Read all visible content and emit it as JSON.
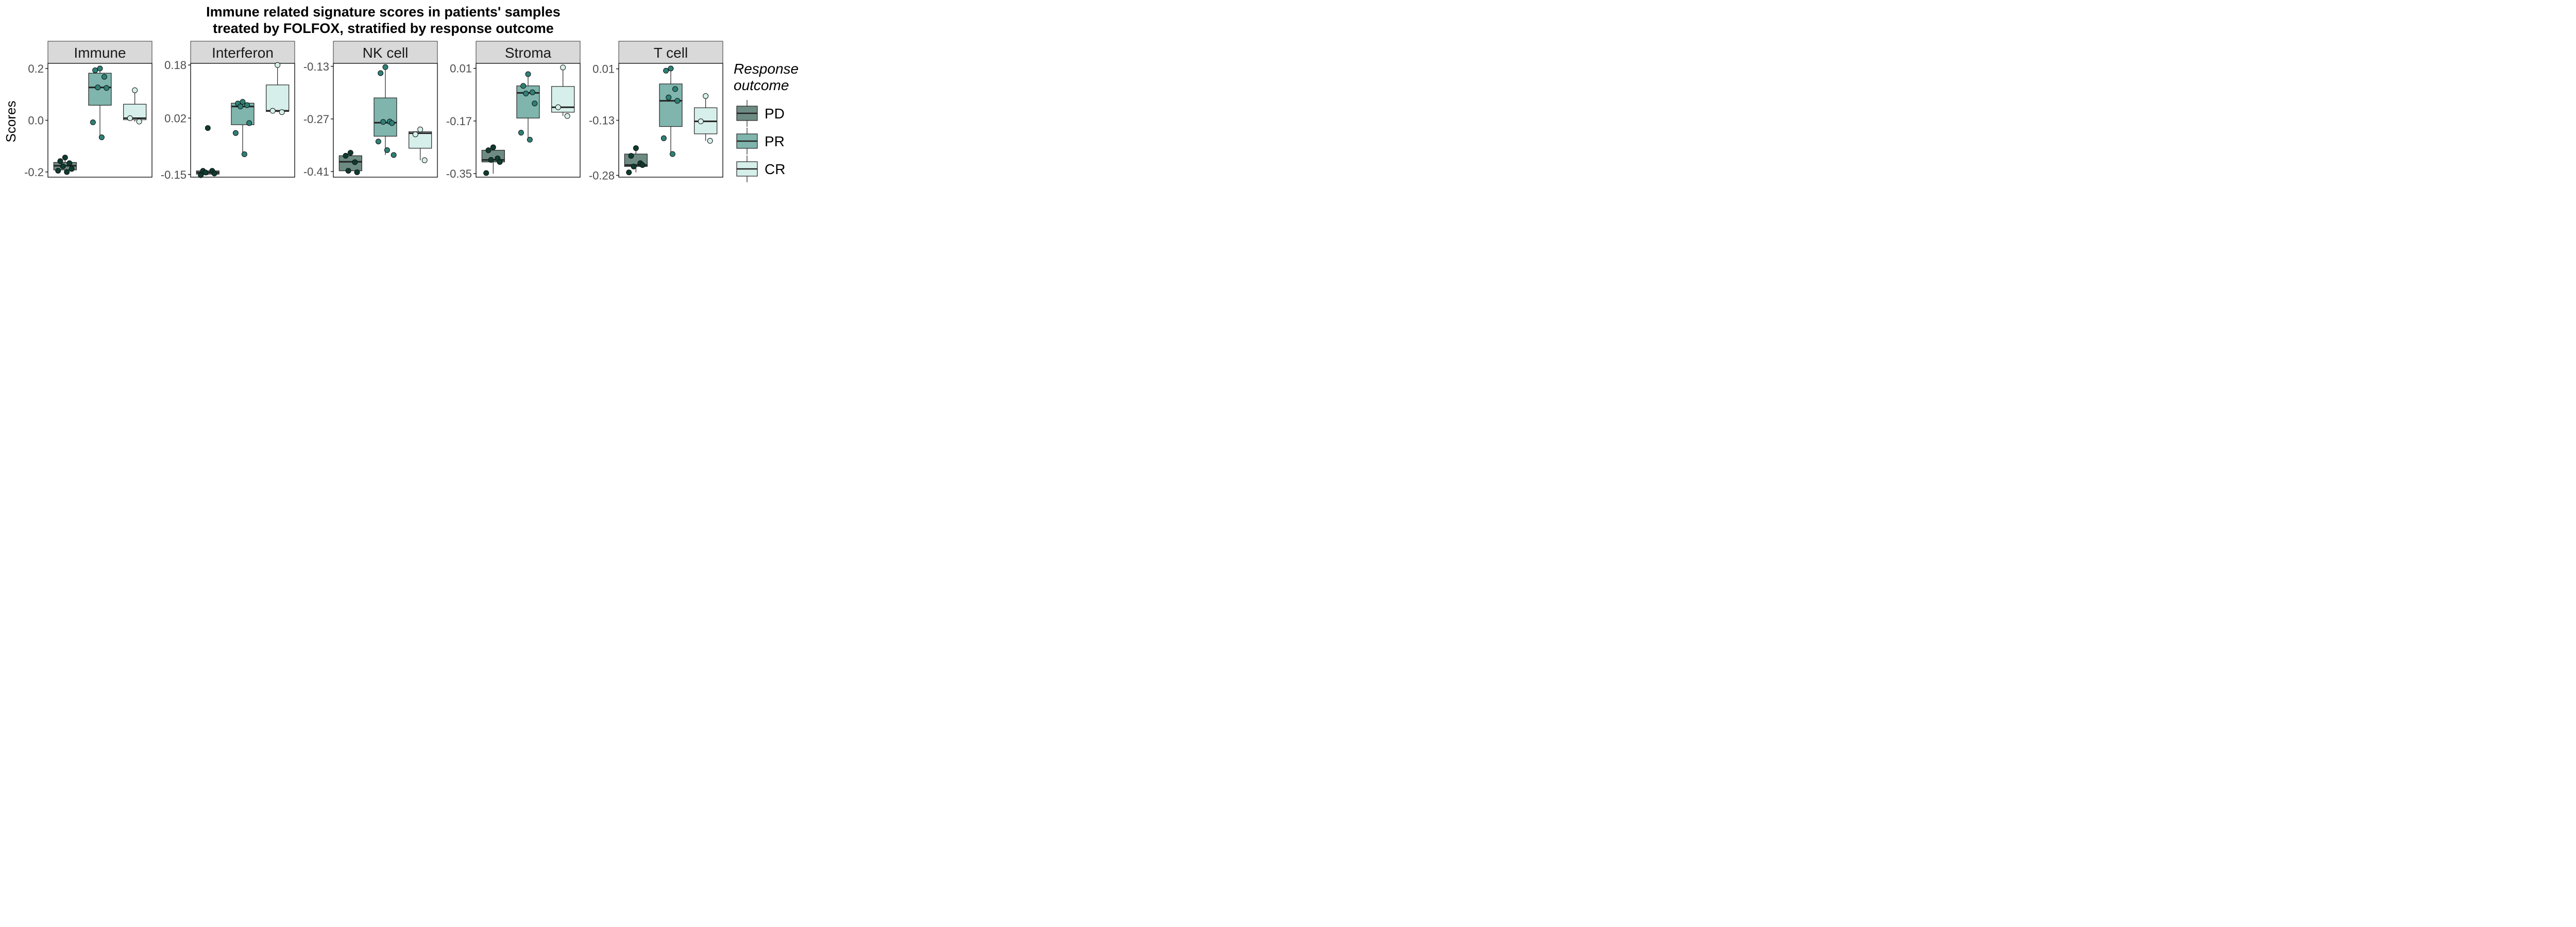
{
  "chart_data": {
    "type": "box",
    "title": "Immune related signature scores in patients' samples treated by FOLFOX, stratified by response outcome",
    "title_lines": [
      "Immune related signature scores in patients' samples",
      "treated by FOLFOX, stratified by response outcome"
    ],
    "ylabel": "Scores",
    "legend": {
      "title_lines": [
        "Response",
        "outcome"
      ],
      "placement": "right",
      "entries": [
        {
          "name": "PD",
          "color": "#6d8b82"
        },
        {
          "name": "PR",
          "color": "#7fb5ad"
        },
        {
          "name": "CR",
          "color": "#d6efeb"
        }
      ]
    },
    "groups": [
      "PD",
      "PR",
      "CR"
    ],
    "point_colors": {
      "PD": "#0d3b30",
      "PR": "#2e8076",
      "CR": "#d6efeb"
    },
    "panels": [
      {
        "name": "Immune",
        "ylim": [
          -0.22,
          0.22
        ],
        "ticks": [
          {
            "value": 0.2,
            "label": "0.2"
          },
          {
            "value": 0.0,
            "label": "0.0"
          },
          {
            "value": -0.2,
            "label": "-0.2"
          }
        ],
        "boxes": [
          {
            "group": "PD",
            "q1": -0.192,
            "median": -0.176,
            "q3": -0.163,
            "low": -0.2,
            "high": -0.144
          },
          {
            "group": "PR",
            "q1": 0.058,
            "median": 0.127,
            "q3": 0.182,
            "low": -0.066,
            "high": 0.2
          },
          {
            "group": "CR",
            "q1": 0.002,
            "median": 0.008,
            "q3": 0.062,
            "low": -0.005,
            "high": 0.116
          }
        ],
        "points": [
          {
            "group": "PD",
            "values": [
              -0.144,
              -0.158,
              -0.166,
              -0.178,
              -0.188,
              -0.195,
              -0.2
            ]
          },
          {
            "group": "PR",
            "values": [
              0.2,
              0.193,
              0.168,
              0.127,
              0.125,
              -0.008,
              -0.066
            ]
          },
          {
            "group": "CR",
            "values": [
              0.116,
              0.008,
              -0.005
            ]
          }
        ]
      },
      {
        "name": "Interferon",
        "ylim": [
          -0.158,
          0.185
        ],
        "ticks": [
          {
            "value": 0.18,
            "label": "0.18"
          },
          {
            "value": 0.02,
            "label": "0.02"
          },
          {
            "value": -0.15,
            "label": "-0.15"
          }
        ],
        "boxes": [
          {
            "group": "PD",
            "q1": -0.149,
            "median": -0.144,
            "q3": -0.139,
            "low": -0.152,
            "high": -0.139
          },
          {
            "group": "PR",
            "q1": 0.0,
            "median": 0.055,
            "q3": 0.065,
            "low": -0.089,
            "high": 0.069
          },
          {
            "group": "CR",
            "q1": 0.04,
            "median": 0.042,
            "q3": 0.12,
            "low": 0.038,
            "high": 0.18
          }
        ],
        "points": [
          {
            "group": "PD",
            "values": [
              -0.01,
              -0.139,
              -0.139,
              -0.144,
              -0.147,
              -0.152
            ]
          },
          {
            "group": "PR",
            "values": [
              0.069,
              0.064,
              0.059,
              0.055,
              0.005,
              -0.025,
              -0.089
            ]
          },
          {
            "group": "CR",
            "values": [
              0.18,
              0.042,
              0.038
            ]
          }
        ]
      },
      {
        "name": "NK cell",
        "ylim": [
          -0.425,
          -0.122
        ],
        "ticks": [
          {
            "value": -0.13,
            "label": "-0.13"
          },
          {
            "value": -0.27,
            "label": "-0.27"
          },
          {
            "value": -0.41,
            "label": "-0.41"
          }
        ],
        "boxes": [
          {
            "group": "PD",
            "q1": -0.408,
            "median": -0.384,
            "q3": -0.368,
            "low": -0.412,
            "high": -0.36
          },
          {
            "group": "PR",
            "q1": -0.316,
            "median": -0.28,
            "q3": -0.214,
            "low": -0.366,
            "high": -0.132
          },
          {
            "group": "CR",
            "q1": -0.348,
            "median": -0.308,
            "q3": -0.304,
            "low": -0.38,
            "high": -0.296
          }
        ],
        "points": [
          {
            "group": "PD",
            "values": [
              -0.36,
              -0.368,
              -0.385,
              -0.408,
              -0.412
            ]
          },
          {
            "group": "PR",
            "values": [
              -0.132,
              -0.148,
              -0.277,
              -0.278,
              -0.281,
              -0.33,
              -0.353,
              -0.366
            ]
          },
          {
            "group": "CR",
            "values": [
              -0.298,
              -0.311,
              -0.38
            ]
          }
        ]
      },
      {
        "name": "Stroma",
        "ylim": [
          -0.362,
          0.027
        ],
        "ticks": [
          {
            "value": 0.01,
            "label": "0.01"
          },
          {
            "value": -0.17,
            "label": "-0.17"
          },
          {
            "value": -0.35,
            "label": "-0.35"
          }
        ],
        "boxes": [
          {
            "group": "PD",
            "q1": -0.31,
            "median": -0.303,
            "q3": -0.27,
            "low": -0.35,
            "high": -0.26
          },
          {
            "group": "PR",
            "q1": -0.16,
            "median": -0.074,
            "q3": -0.05,
            "low": -0.234,
            "high": -0.01
          },
          {
            "group": "CR",
            "q1": -0.14,
            "median": -0.123,
            "q3": -0.052,
            "low": -0.153,
            "high": 0.013
          }
        ],
        "points": [
          {
            "group": "PD",
            "values": [
              -0.26,
              -0.27,
              -0.298,
              -0.303,
              -0.31,
              -0.348
            ]
          },
          {
            "group": "PR",
            "values": [
              -0.01,
              -0.05,
              -0.072,
              -0.076,
              -0.11,
              -0.21,
              -0.234
            ]
          },
          {
            "group": "CR",
            "values": [
              0.013,
              -0.123,
              -0.153
            ]
          }
        ]
      },
      {
        "name": "T cell",
        "ylim": [
          -0.285,
          0.025
        ],
        "ticks": [
          {
            "value": 0.01,
            "label": "0.01"
          },
          {
            "value": -0.13,
            "label": "-0.13"
          },
          {
            "value": -0.28,
            "label": "-0.28"
          }
        ],
        "boxes": [
          {
            "group": "PD",
            "q1": -0.256,
            "median": -0.252,
            "q3": -0.222,
            "low": -0.272,
            "high": -0.206
          },
          {
            "group": "PR",
            "q1": -0.147,
            "median": -0.077,
            "q3": -0.031,
            "low": -0.222,
            "high": 0.011
          },
          {
            "group": "CR",
            "q1": -0.167,
            "median": -0.133,
            "q3": -0.096,
            "low": -0.186,
            "high": -0.064
          }
        ],
        "points": [
          {
            "group": "PD",
            "values": [
              -0.206,
              -0.227,
              -0.247,
              -0.256,
              -0.252,
              -0.272
            ]
          },
          {
            "group": "PR",
            "values": [
              0.011,
              0.005,
              -0.045,
              -0.068,
              -0.077,
              -0.179,
              -0.222
            ]
          },
          {
            "group": "CR",
            "values": [
              -0.064,
              -0.133,
              -0.186
            ]
          }
        ]
      }
    ]
  }
}
